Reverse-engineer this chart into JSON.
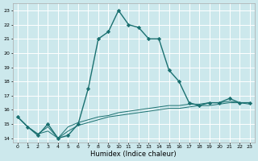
{
  "title": "",
  "xlabel": "Humidex (Indice chaleur)",
  "ylabel": "",
  "bg_color": "#cce8ec",
  "grid_color": "#ffffff",
  "line_color": "#1a7070",
  "xlim": [
    -0.5,
    23.5
  ],
  "ylim": [
    13.7,
    23.5
  ],
  "yticks": [
    14,
    15,
    16,
    17,
    18,
    19,
    20,
    21,
    22,
    23
  ],
  "xticks": [
    0,
    1,
    2,
    3,
    4,
    5,
    6,
    7,
    8,
    9,
    10,
    11,
    12,
    13,
    14,
    15,
    16,
    17,
    18,
    19,
    20,
    21,
    22,
    23
  ],
  "series_main": {
    "x": [
      0,
      1,
      2,
      3,
      4,
      5,
      6,
      7,
      8,
      9,
      10,
      11,
      12,
      13,
      14,
      15,
      16,
      17,
      18,
      19,
      20,
      21,
      22,
      23
    ],
    "y": [
      15.5,
      14.8,
      14.2,
      15.0,
      14.0,
      14.2,
      15.0,
      17.5,
      21.0,
      21.5,
      23.0,
      22.0,
      21.8,
      21.0,
      21.0,
      18.8,
      18.0,
      16.5,
      16.3,
      16.5,
      16.5,
      16.8,
      16.5,
      16.5
    ]
  },
  "series_flat1": {
    "x": [
      0,
      1,
      2,
      3,
      4,
      5,
      6,
      7,
      8,
      9,
      10,
      11,
      12,
      13,
      14,
      15,
      16,
      17,
      18,
      19,
      20,
      21,
      22,
      23
    ],
    "y": [
      15.5,
      14.8,
      14.3,
      14.8,
      14.0,
      14.8,
      15.1,
      15.3,
      15.5,
      15.6,
      15.8,
      15.9,
      16.0,
      16.1,
      16.2,
      16.3,
      16.3,
      16.4,
      16.4,
      16.5,
      16.5,
      16.6,
      16.5,
      16.5
    ]
  },
  "series_flat2": {
    "x": [
      0,
      1,
      2,
      3,
      4,
      5,
      6,
      7,
      8,
      9,
      10,
      11,
      12,
      13,
      14,
      15,
      16,
      17,
      18,
      19,
      20,
      21,
      22,
      23
    ],
    "y": [
      15.5,
      14.8,
      14.3,
      14.5,
      14.0,
      14.5,
      14.9,
      15.1,
      15.3,
      15.5,
      15.6,
      15.7,
      15.8,
      15.9,
      16.0,
      16.1,
      16.1,
      16.2,
      16.3,
      16.3,
      16.4,
      16.5,
      16.5,
      16.4
    ]
  }
}
